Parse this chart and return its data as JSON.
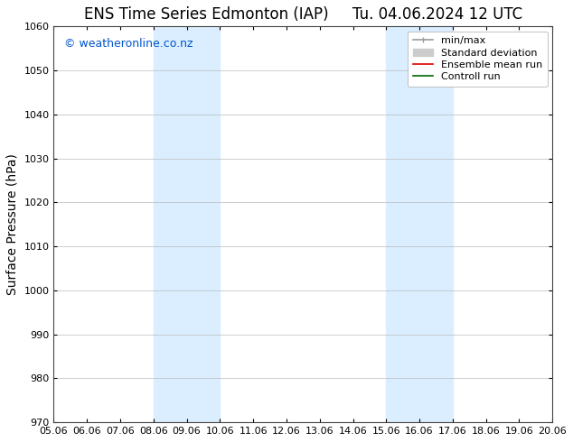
{
  "title_left": "ENS Time Series Edmonton (IAP)",
  "title_right": "Tu. 04.06.2024 12 UTC",
  "ylabel": "Surface Pressure (hPa)",
  "watermark": "© weatheronline.co.nz",
  "watermark_color": "#0055cc",
  "xlim_start": 0,
  "xlim_end": 15,
  "ylim_bottom": 970,
  "ylim_top": 1060,
  "yticks": [
    970,
    980,
    990,
    1000,
    1010,
    1020,
    1030,
    1040,
    1050,
    1060
  ],
  "xtick_labels": [
    "05.06",
    "06.06",
    "07.06",
    "08.06",
    "09.06",
    "10.06",
    "11.06",
    "12.06",
    "13.06",
    "14.06",
    "15.06",
    "16.06",
    "17.06",
    "18.06",
    "19.06",
    "20.06"
  ],
  "xtick_positions": [
    0,
    1,
    2,
    3,
    4,
    5,
    6,
    7,
    8,
    9,
    10,
    11,
    12,
    13,
    14,
    15
  ],
  "shaded_bands": [
    {
      "x_start": 3,
      "x_end": 5
    },
    {
      "x_start": 10,
      "x_end": 12
    }
  ],
  "shade_color": "#daeeff",
  "background_color": "#ffffff",
  "grid_color": "#bbbbbb",
  "legend_entries": [
    {
      "label": "min/max",
      "color": "#999999",
      "linestyle": "-",
      "linewidth": 1.2
    },
    {
      "label": "Standard deviation",
      "color": "#cccccc",
      "linestyle": "-",
      "linewidth": 7
    },
    {
      "label": "Ensemble mean run",
      "color": "#dd0000",
      "linestyle": "-",
      "linewidth": 1.2
    },
    {
      "label": "Controll run",
      "color": "#006600",
      "linestyle": "-",
      "linewidth": 1.2
    }
  ],
  "title_fontsize": 12,
  "ylabel_fontsize": 10,
  "tick_fontsize": 8,
  "legend_fontsize": 8,
  "watermark_fontsize": 9
}
